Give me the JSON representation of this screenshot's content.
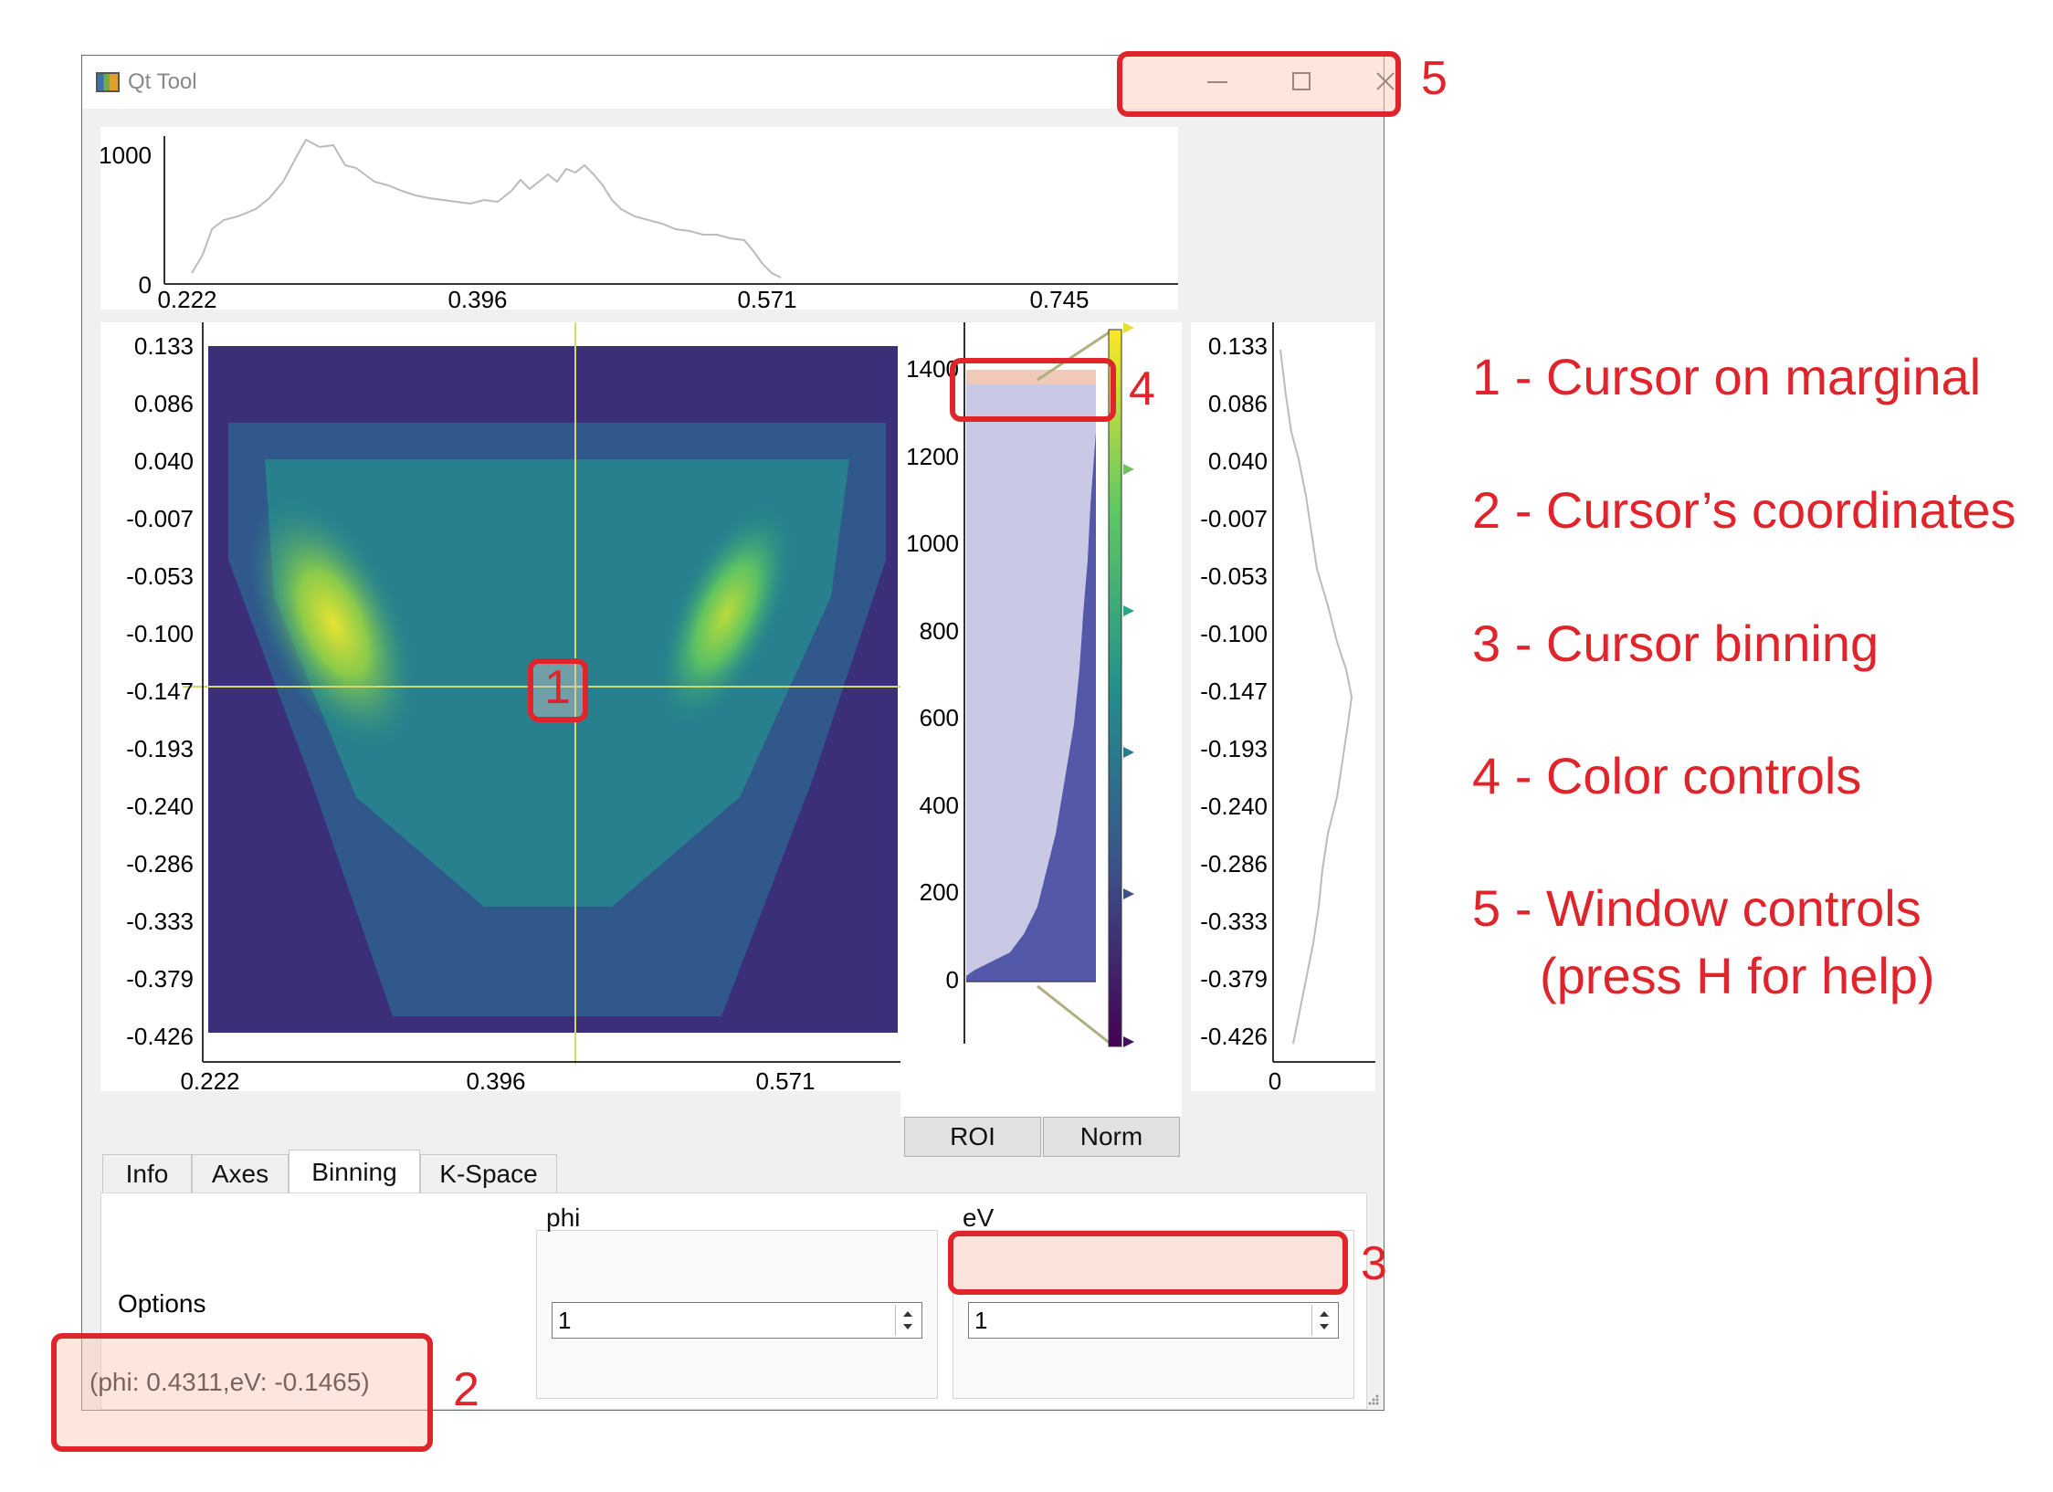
{
  "window": {
    "title": "Qt Tool"
  },
  "top_marginal": {
    "y_ticks": [
      "1000",
      "0"
    ],
    "x_ticks": [
      "0.222",
      "0.396",
      "0.571",
      "0.745"
    ]
  },
  "main_plot": {
    "y_ticks": [
      "0.133",
      "0.086",
      "0.040",
      "-0.007",
      "-0.053",
      "-0.100",
      "-0.147",
      "-0.193",
      "-0.240",
      "-0.286",
      "-0.333",
      "-0.379",
      "-0.426"
    ],
    "x_ticks": [
      "0.222",
      "0.396",
      "0.571"
    ],
    "cursor": {
      "phi": 0.4311,
      "eV": -0.1465
    }
  },
  "colorbar": {
    "ticks": [
      "1400",
      "1200",
      "1000",
      "800",
      "600",
      "400",
      "200",
      "0"
    ]
  },
  "right_marginal": {
    "y_ticks": [
      "0.133",
      "0.086",
      "0.040",
      "-0.007",
      "-0.053",
      "-0.100",
      "-0.147",
      "-0.193",
      "-0.240",
      "-0.286",
      "-0.333",
      "-0.379",
      "-0.426"
    ],
    "x_ticks": [
      "0"
    ]
  },
  "buttons": {
    "roi": "ROI",
    "norm": "Norm"
  },
  "tabs": [
    "Info",
    "Axes",
    "Binning",
    "K-Space"
  ],
  "binning": {
    "options_label": "Options",
    "phi_label": "phi",
    "phi_value": "1",
    "ev_label": "eV",
    "ev_value": "1"
  },
  "status": {
    "text": "(phi: 0.4311,eV: -0.1465)"
  },
  "annotations": {
    "markers": [
      "1",
      "2",
      "3",
      "4",
      "5"
    ],
    "legend": [
      "1 - Cursor on marginal",
      "2 - Cursor’s coordinates",
      "3 - Cursor binning",
      "4 - Color controls",
      "5 - Window controls",
      "(press H for help)"
    ]
  },
  "colors": {
    "accent": "#e0242b",
    "cursor": "#d4d86a",
    "histogram": "#5458a8"
  }
}
